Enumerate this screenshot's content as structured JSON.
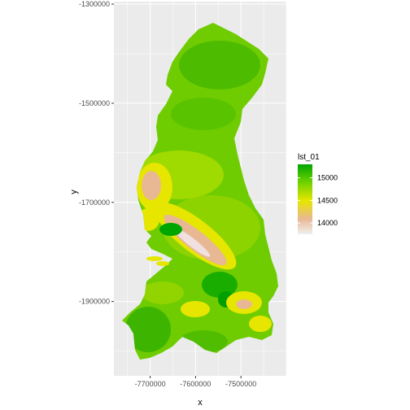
{
  "chart_data": {
    "type": "heatmap",
    "xlabel": "x",
    "ylabel": "y",
    "xlim": [
      -7780000,
      -7400000
    ],
    "ylim": [
      -2050000,
      -1295000
    ],
    "x_ticks": [
      {
        "value": -7700000,
        "label": "-7700000"
      },
      {
        "value": -7600000,
        "label": "-7600000"
      },
      {
        "value": -7500000,
        "label": "-7500000"
      }
    ],
    "y_ticks": [
      {
        "value": -1300000,
        "label": "-1300000"
      },
      {
        "value": -1500000,
        "label": "-1500000"
      },
      {
        "value": -1700000,
        "label": "-1700000"
      },
      {
        "value": -1900000,
        "label": "-1900000"
      }
    ],
    "legend": {
      "title": "lst_01",
      "placement": "right",
      "min": 13750,
      "max": 15300,
      "breaks": [
        {
          "value": 15000,
          "label": "15000"
        },
        {
          "value": 14500,
          "label": "14500"
        },
        {
          "value": 14000,
          "label": "14000"
        }
      ],
      "colors": [
        "#f0f0f0",
        "#e8b894",
        "#e6e600",
        "#6bd100",
        "#00a600"
      ]
    },
    "panel_background": "#ebebeb",
    "grid": true
  }
}
